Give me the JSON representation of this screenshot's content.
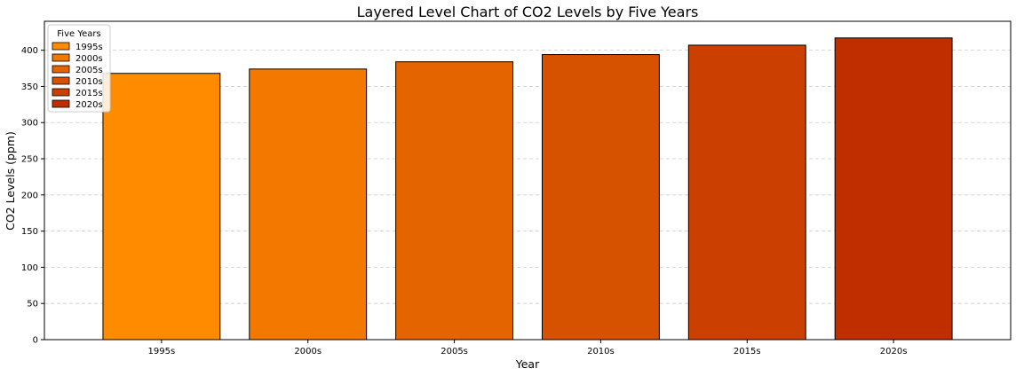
{
  "chart_data": {
    "type": "bar",
    "title": "Layered Level Chart of CO2 Levels by Five Years",
    "xlabel": "Year",
    "ylabel": "CO2 Levels (ppm)",
    "categories": [
      "1995s",
      "2000s",
      "2005s",
      "2010s",
      "2015s",
      "2020s"
    ],
    "values": [
      368,
      374,
      384,
      394,
      407,
      417
    ],
    "colors": [
      "#ff8c00",
      "#f27800",
      "#e46400",
      "#d65100",
      "#cb3f00",
      "#c02e00"
    ],
    "ylim": [
      0,
      440
    ],
    "yticks": [
      0,
      50,
      100,
      150,
      200,
      250,
      300,
      350,
      400
    ],
    "grid": "y-dashed",
    "legend": {
      "title": "Five Years",
      "placement": "top-left",
      "entries": [
        "1995s",
        "2000s",
        "2005s",
        "2010s",
        "2015s",
        "2020s"
      ]
    }
  }
}
